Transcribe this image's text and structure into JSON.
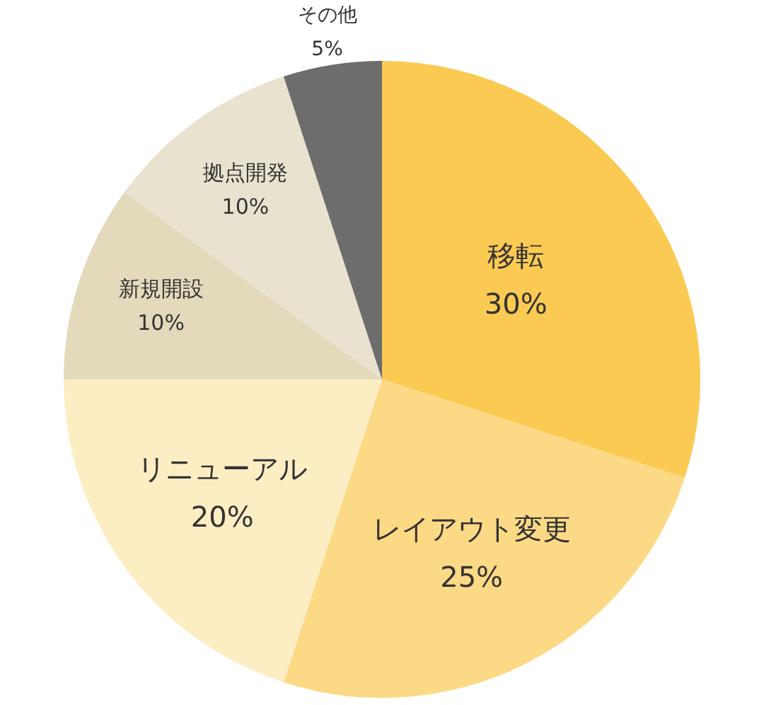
{
  "chart_data": {
    "type": "pie",
    "categories": [
      "移転",
      "レイアウト変更",
      "リニューアル",
      "新規開設",
      "拠点開発",
      "その他"
    ],
    "values": [
      30,
      25,
      20,
      10,
      10,
      5
    ],
    "colors": [
      "#fbca53",
      "#fcd985",
      "#fdedc2",
      "#e3d9bb",
      "#e8e2cf",
      "#6d6d6d"
    ],
    "value_labels": [
      "30%",
      "25%",
      "20%",
      "10%",
      "10%",
      "5%"
    ]
  }
}
